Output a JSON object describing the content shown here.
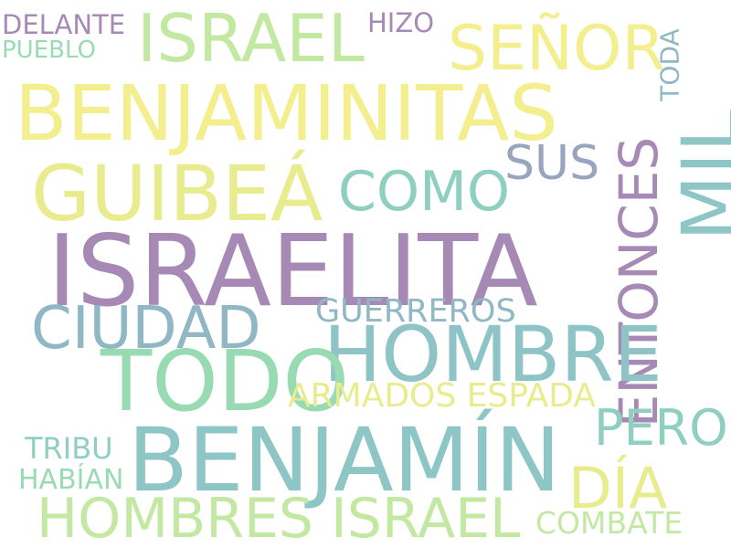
{
  "words": [
    {
      "key": "israelita",
      "text": "ISRAELITA",
      "color": "#a689b5"
    },
    {
      "key": "benjamin",
      "text": "BENJAMÍN",
      "color": "#8ec6c5"
    },
    {
      "key": "benjaminitas",
      "text": "BENJAMINITAS",
      "color": "#f3ef8f"
    },
    {
      "key": "guibea",
      "text": "GUIBEÁ",
      "color": "#e8ec8f"
    },
    {
      "key": "todo",
      "text": "TODO",
      "color": "#98dbb3"
    },
    {
      "key": "hombre",
      "text": "HOMBRE",
      "color": "#8ec4c6"
    },
    {
      "key": "israel",
      "text": "ISRAEL",
      "color": "#c2e8a1"
    },
    {
      "key": "senor",
      "text": "SEÑOR",
      "color": "#f3ef8f"
    },
    {
      "key": "hombres_israel",
      "text": "HOMBRES ISRAEL",
      "color": "#c2e8a1"
    },
    {
      "key": "mil",
      "text": "MIL",
      "color": "#8ec6c5"
    },
    {
      "key": "entonces",
      "text": "ENTONCES",
      "color": "#a689b5"
    },
    {
      "key": "ciudad",
      "text": "CIUDAD",
      "color": "#8fb7c4"
    },
    {
      "key": "como",
      "text": "COMO",
      "color": "#8ecfc0"
    },
    {
      "key": "sus",
      "text": "SUS",
      "color": "#99a4be"
    },
    {
      "key": "pero",
      "text": "PERO",
      "color": "#8ecfc0"
    },
    {
      "key": "dia",
      "text": "DÍA",
      "color": "#e8ec8f"
    },
    {
      "key": "armados_espada",
      "text": "ARMADOS ESPADA",
      "color": "#e8ec8f"
    },
    {
      "key": "guerreros",
      "text": "GUERREROS",
      "color": "#8fb7c4"
    },
    {
      "key": "delante",
      "text": "DELANTE",
      "color": "#a689b5"
    },
    {
      "key": "pueblo",
      "text": "PUEBLO",
      "color": "#98dbb3"
    },
    {
      "key": "hizo",
      "text": "HIZO",
      "color": "#a689b5"
    },
    {
      "key": "toda",
      "text": "TODA",
      "color": "#8fb7c4"
    },
    {
      "key": "tribu",
      "text": "TRIBU",
      "color": "#8ecfc0"
    },
    {
      "key": "habian",
      "text": "HABÍAN",
      "color": "#98dbb3"
    },
    {
      "key": "combate",
      "text": "COMBATE",
      "color": "#c2e8a1"
    }
  ]
}
